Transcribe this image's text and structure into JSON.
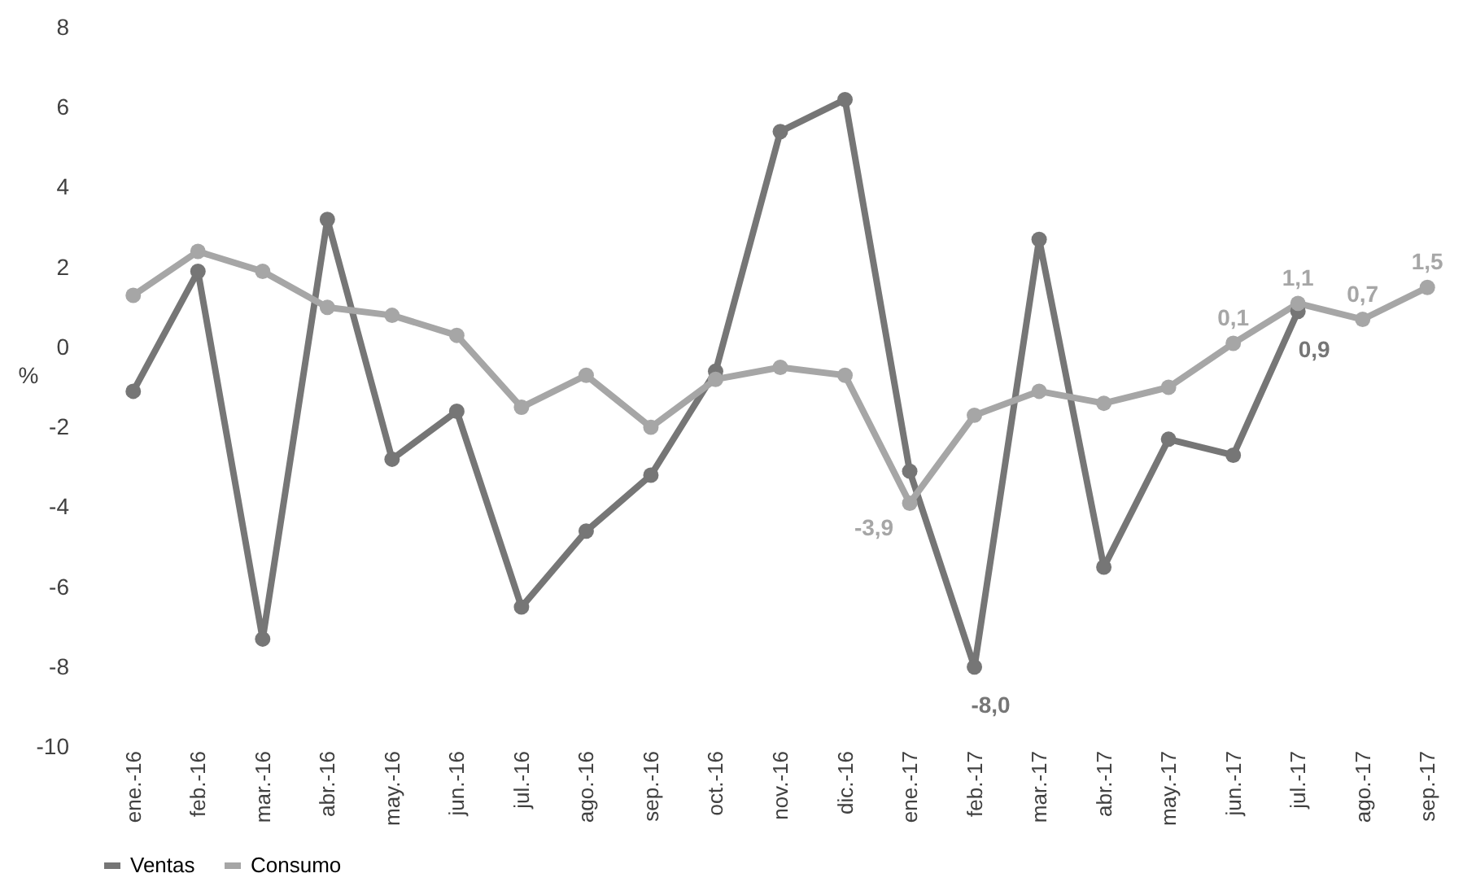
{
  "chart_data": {
    "type": "line",
    "ylabel": "%",
    "categories": [
      "ene.-16",
      "feb.-16",
      "mar.-16",
      "abr.-16",
      "may.-16",
      "jun.-16",
      "jul.-16",
      "ago.-16",
      "sep.-16",
      "oct.-16",
      "nov.-16",
      "dic.-16",
      "ene.-17",
      "feb.-17",
      "mar.-17",
      "abr.-17",
      "may.-17",
      "jun.-17",
      "jul.-17",
      "ago.-17",
      "sep.-17"
    ],
    "series": [
      {
        "name": "Ventas",
        "color": "#767676",
        "values": [
          -1.1,
          1.9,
          -7.3,
          3.2,
          -2.8,
          -1.6,
          -6.5,
          -4.6,
          -3.2,
          -0.6,
          5.4,
          6.2,
          -3.1,
          -8.0,
          2.7,
          -5.5,
          -2.3,
          -2.7,
          0.9,
          null,
          null
        ],
        "value_labels": [
          null,
          null,
          null,
          null,
          null,
          null,
          null,
          null,
          null,
          null,
          null,
          null,
          null,
          "-8,0",
          null,
          null,
          null,
          null,
          "0,9",
          null,
          null
        ]
      },
      {
        "name": "Consumo",
        "color": "#a6a6a6",
        "values": [
          1.3,
          2.4,
          1.9,
          1.0,
          0.8,
          0.3,
          -1.5,
          -0.7,
          -2.0,
          -0.8,
          -0.5,
          -0.7,
          -3.9,
          -1.7,
          -1.1,
          -1.4,
          -1.0,
          0.1,
          1.1,
          0.7,
          1.5
        ],
        "value_labels": [
          null,
          null,
          null,
          null,
          null,
          null,
          null,
          null,
          null,
          null,
          null,
          null,
          "-3,9",
          null,
          null,
          null,
          null,
          "0,1",
          "1,1",
          "0,7",
          "1,5"
        ]
      }
    ],
    "ylim": [
      -10,
      8
    ],
    "yticks": [
      -10,
      -8,
      -6,
      -4,
      -2,
      0,
      2,
      4,
      6,
      8
    ],
    "grid": false,
    "legend": "bottom",
    "marker": "circle",
    "line_style": "solid"
  }
}
